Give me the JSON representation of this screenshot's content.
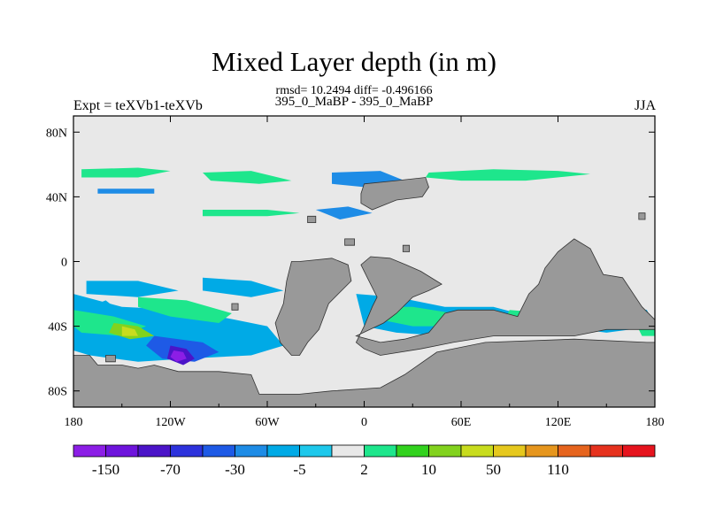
{
  "header": {
    "title": "Mixed Layer depth (in m)",
    "rmsd_line": "rmsd= 10.2494 diff= -0.496166",
    "subtitle": "395_0_MaBP - 395_0_MaBP",
    "experiment": "Expt = teXVb1-teXVb",
    "season": "JJA"
  },
  "chart_data": {
    "type": "heatmap",
    "title": "Mixed Layer depth (in m)",
    "subtitle": "395_0_MaBP - 395_0_MaBP",
    "xlim": [
      -180,
      180
    ],
    "ylim": [
      -90,
      90
    ],
    "x_ticks": [
      {
        "value": -180,
        "label": "180"
      },
      {
        "value": -120,
        "label": "120W"
      },
      {
        "value": -60,
        "label": "60W"
      },
      {
        "value": 0,
        "label": "0"
      },
      {
        "value": 60,
        "label": "60E"
      },
      {
        "value": 120,
        "label": "120E"
      },
      {
        "value": 180,
        "label": "180"
      }
    ],
    "y_ticks": [
      {
        "value": 80,
        "label": "80N"
      },
      {
        "value": 40,
        "label": "40N"
      },
      {
        "value": 0,
        "label": "0"
      },
      {
        "value": -40,
        "label": "40S"
      },
      {
        "value": -80,
        "label": "80S"
      }
    ],
    "colorbar": {
      "colors": [
        "#8c1ee6",
        "#6e14dc",
        "#4b14c8",
        "#2d32dc",
        "#1e5ae6",
        "#1e8ce6",
        "#00aae6",
        "#1ec8eb",
        "#e8e8e8",
        "#1ee68c",
        "#32d21e",
        "#82d21e",
        "#c8dc1e",
        "#e6c81e",
        "#e6961e",
        "#e6641e",
        "#e6321e",
        "#e6141e"
      ],
      "labels": [
        {
          "text": "-150",
          "index": 1
        },
        {
          "text": "-70",
          "index": 3
        },
        {
          "text": "-30",
          "index": 5
        },
        {
          "text": "-5",
          "index": 7
        },
        {
          "text": "2",
          "index": 9
        },
        {
          "text": "10",
          "index": 11
        },
        {
          "text": "50",
          "index": 13
        },
        {
          "text": "110",
          "index": 15
        }
      ]
    },
    "background_color": "#e8e8e8",
    "land_color": "#999999",
    "land": [
      {
        "name": "antarctica",
        "points": [
          [
            -180,
            -90
          ],
          [
            -180,
            -58
          ],
          [
            -170,
            -58
          ],
          [
            -165,
            -64
          ],
          [
            -150,
            -64
          ],
          [
            -140,
            -66
          ],
          [
            -130,
            -64
          ],
          [
            -115,
            -68
          ],
          [
            -90,
            -68
          ],
          [
            -70,
            -70
          ],
          [
            -65,
            -82
          ],
          [
            -40,
            -82
          ],
          [
            -20,
            -80
          ],
          [
            10,
            -78
          ],
          [
            25,
            -70
          ],
          [
            45,
            -56
          ],
          [
            75,
            -50
          ],
          [
            130,
            -48
          ],
          [
            175,
            -50
          ],
          [
            180,
            -50
          ],
          [
            180,
            -90
          ]
        ]
      },
      {
        "name": "south-america",
        "points": [
          [
            -45,
            0
          ],
          [
            -40,
            0
          ],
          [
            -20,
            2
          ],
          [
            -10,
            -2
          ],
          [
            -8,
            -12
          ],
          [
            -22,
            -26
          ],
          [
            -28,
            -42
          ],
          [
            -35,
            -50
          ],
          [
            -40,
            -58
          ],
          [
            -45,
            -58
          ],
          [
            -52,
            -50
          ],
          [
            -55,
            -38
          ],
          [
            -50,
            -26
          ],
          [
            -48,
            -12
          ]
        ]
      },
      {
        "name": "africa",
        "points": [
          [
            5,
            -28
          ],
          [
            8,
            -22
          ],
          [
            2,
            -10
          ],
          [
            -2,
            -2
          ],
          [
            4,
            3
          ],
          [
            16,
            2
          ],
          [
            26,
            -2
          ],
          [
            35,
            -6
          ],
          [
            48,
            -14
          ],
          [
            40,
            -18
          ],
          [
            30,
            -22
          ],
          [
            20,
            -32
          ],
          [
            12,
            -38
          ],
          [
            -5,
            -46
          ],
          [
            10,
            -50
          ],
          [
            25,
            -48
          ],
          [
            40,
            -44
          ],
          [
            50,
            -32
          ],
          [
            58,
            -30
          ],
          [
            80,
            -30
          ],
          [
            95,
            -34
          ],
          [
            102,
            -20
          ],
          [
            108,
            -14
          ],
          [
            112,
            -4
          ],
          [
            120,
            6
          ],
          [
            130,
            14
          ],
          [
            140,
            8
          ],
          [
            148,
            -8
          ],
          [
            160,
            -10
          ],
          [
            172,
            -28
          ],
          [
            180,
            -36
          ],
          [
            180,
            -42
          ],
          [
            150,
            -42
          ],
          [
            130,
            -46
          ],
          [
            80,
            -46
          ],
          [
            55,
            -50
          ],
          [
            35,
            -54
          ],
          [
            10,
            -58
          ],
          [
            0,
            -54
          ],
          [
            -5,
            -50
          ],
          [
            0,
            -40
          ]
        ]
      },
      {
        "name": "north-island-1",
        "points": [
          [
            -2,
            42
          ],
          [
            0,
            48
          ],
          [
            20,
            50
          ],
          [
            38,
            52
          ],
          [
            40,
            46
          ],
          [
            36,
            40
          ],
          [
            20,
            38
          ],
          [
            5,
            32
          ],
          [
            -2,
            36
          ]
        ]
      },
      {
        "name": "north-island-2",
        "points": [
          [
            -35,
            28
          ],
          [
            -30,
            28
          ],
          [
            -30,
            24
          ],
          [
            -35,
            24
          ]
        ]
      },
      {
        "name": "north-island-3",
        "points": [
          [
            -12,
            14
          ],
          [
            -6,
            14
          ],
          [
            -6,
            10
          ],
          [
            -12,
            10
          ]
        ]
      },
      {
        "name": "north-island-4",
        "points": [
          [
            24,
            10
          ],
          [
            28,
            10
          ],
          [
            28,
            6
          ],
          [
            24,
            6
          ]
        ]
      },
      {
        "name": "north-island-5",
        "points": [
          [
            170,
            30
          ],
          [
            174,
            30
          ],
          [
            174,
            26
          ],
          [
            170,
            26
          ]
        ]
      },
      {
        "name": "small-island-a",
        "points": [
          [
            -82,
            -26
          ],
          [
            -78,
            -26
          ],
          [
            -78,
            -30
          ],
          [
            -82,
            -30
          ]
        ]
      },
      {
        "name": "small-island-b",
        "points": [
          [
            -160,
            -58
          ],
          [
            -154,
            -58
          ],
          [
            -154,
            -62
          ],
          [
            -160,
            -62
          ]
        ]
      }
    ],
    "field_patches": [
      {
        "color": "#1ee68c",
        "level": 10,
        "points": [
          [
            -175,
            57
          ],
          [
            -140,
            58
          ],
          [
            -120,
            56
          ],
          [
            -140,
            52
          ],
          [
            -175,
            52
          ]
        ]
      },
      {
        "color": "#1ee68c",
        "level": 10,
        "points": [
          [
            -100,
            55
          ],
          [
            -70,
            56
          ],
          [
            -45,
            50
          ],
          [
            -65,
            48
          ],
          [
            -95,
            50
          ]
        ]
      },
      {
        "color": "#1ee68c",
        "level": 10,
        "points": [
          [
            40,
            55
          ],
          [
            80,
            57
          ],
          [
            120,
            56
          ],
          [
            140,
            54
          ],
          [
            100,
            50
          ],
          [
            60,
            50
          ],
          [
            38,
            52
          ]
        ]
      },
      {
        "color": "#1ee68c",
        "level": 10,
        "points": [
          [
            -100,
            32
          ],
          [
            -60,
            32
          ],
          [
            -40,
            30
          ],
          [
            -60,
            28
          ],
          [
            -100,
            28
          ]
        ]
      },
      {
        "color": "#1e8ce6",
        "level": -5,
        "points": [
          [
            -165,
            45
          ],
          [
            -130,
            45
          ],
          [
            -130,
            42
          ],
          [
            -165,
            42
          ]
        ]
      },
      {
        "color": "#1e8ce6",
        "level": -5,
        "points": [
          [
            -20,
            55
          ],
          [
            10,
            56
          ],
          [
            25,
            50
          ],
          [
            0,
            46
          ],
          [
            -20,
            48
          ]
        ]
      },
      {
        "color": "#1e8ce6",
        "level": -5,
        "points": [
          [
            -30,
            32
          ],
          [
            -10,
            34
          ],
          [
            5,
            30
          ],
          [
            -15,
            26
          ]
        ]
      },
      {
        "color": "#00aae6",
        "level": -5,
        "points": [
          [
            -172,
            -12
          ],
          [
            -140,
            -12
          ],
          [
            -115,
            -18
          ],
          [
            -140,
            -22
          ],
          [
            -172,
            -20
          ]
        ]
      },
      {
        "color": "#00aae6",
        "level": -5,
        "points": [
          [
            -180,
            -20
          ],
          [
            -150,
            -28
          ],
          [
            -110,
            -30
          ],
          [
            -80,
            -36
          ],
          [
            -60,
            -40
          ],
          [
            -50,
            -52
          ],
          [
            -70,
            -58
          ],
          [
            -110,
            -60
          ],
          [
            -140,
            -62
          ],
          [
            -170,
            -58
          ],
          [
            -180,
            -55
          ]
        ]
      },
      {
        "color": "#00aae6",
        "level": -5,
        "points": [
          [
            -100,
            -10
          ],
          [
            -70,
            -12
          ],
          [
            -50,
            -18
          ],
          [
            -70,
            -22
          ],
          [
            -100,
            -18
          ]
        ]
      },
      {
        "color": "#00aae6",
        "level": -5,
        "points": [
          [
            -180,
            -32
          ],
          [
            -160,
            -24
          ],
          [
            -150,
            -32
          ],
          [
            -165,
            -38
          ],
          [
            -180,
            -42
          ]
        ]
      },
      {
        "color": "#1ee68c",
        "level": 10,
        "points": [
          [
            -140,
            -22
          ],
          [
            -110,
            -24
          ],
          [
            -82,
            -32
          ],
          [
            -90,
            -38
          ],
          [
            -120,
            -34
          ],
          [
            -140,
            -28
          ]
        ]
      },
      {
        "color": "#1ee68c",
        "level": 10,
        "points": [
          [
            -180,
            -30
          ],
          [
            -155,
            -34
          ],
          [
            -135,
            -40
          ],
          [
            -150,
            -46
          ],
          [
            -175,
            -44
          ],
          [
            -180,
            -40
          ]
        ]
      },
      {
        "color": "#82d21e",
        "level": 10,
        "points": [
          [
            -155,
            -38
          ],
          [
            -140,
            -40
          ],
          [
            -130,
            -46
          ],
          [
            -145,
            -48
          ],
          [
            -158,
            -44
          ]
        ]
      },
      {
        "color": "#c8dc1e",
        "level": 50,
        "points": [
          [
            -150,
            -40
          ],
          [
            -142,
            -42
          ],
          [
            -140,
            -46
          ],
          [
            -150,
            -46
          ]
        ]
      },
      {
        "color": "#1e5ae6",
        "level": -30,
        "points": [
          [
            -130,
            -46
          ],
          [
            -100,
            -50
          ],
          [
            -90,
            -56
          ],
          [
            -105,
            -62
          ],
          [
            -125,
            -60
          ],
          [
            -135,
            -52
          ]
        ]
      },
      {
        "color": "#4b14c8",
        "level": -70,
        "points": [
          [
            -120,
            -52
          ],
          [
            -110,
            -54
          ],
          [
            -105,
            -60
          ],
          [
            -112,
            -64
          ],
          [
            -122,
            -60
          ]
        ]
      },
      {
        "color": "#8c1ee6",
        "level": -150,
        "points": [
          [
            -118,
            -55
          ],
          [
            -112,
            -56
          ],
          [
            -110,
            -60
          ],
          [
            -116,
            -62
          ],
          [
            -120,
            -59
          ]
        ]
      },
      {
        "color": "#00aae6",
        "level": -5,
        "points": [
          [
            -5,
            -20
          ],
          [
            20,
            -22
          ],
          [
            50,
            -28
          ],
          [
            80,
            -28
          ],
          [
            95,
            -32
          ],
          [
            80,
            -46
          ],
          [
            50,
            -46
          ],
          [
            20,
            -44
          ],
          [
            0,
            -40
          ]
        ]
      },
      {
        "color": "#1ee68c",
        "level": 10,
        "points": [
          [
            5,
            -28
          ],
          [
            30,
            -28
          ],
          [
            55,
            -32
          ],
          [
            75,
            -34
          ],
          [
            60,
            -40
          ],
          [
            30,
            -40
          ],
          [
            10,
            -36
          ]
        ]
      },
      {
        "color": "#82d21e",
        "level": 10,
        "points": [
          [
            55,
            -36
          ],
          [
            70,
            -40
          ],
          [
            75,
            -46
          ],
          [
            62,
            -48
          ],
          [
            52,
            -42
          ]
        ]
      },
      {
        "color": "#1ee68c",
        "level": 10,
        "points": [
          [
            90,
            -30
          ],
          [
            115,
            -32
          ],
          [
            120,
            -36
          ],
          [
            100,
            -38
          ],
          [
            88,
            -34
          ]
        ]
      },
      {
        "color": "#00aae6",
        "level": -5,
        "points": [
          [
            100,
            -24
          ],
          [
            140,
            -22
          ],
          [
            175,
            -30
          ],
          [
            180,
            -40
          ],
          [
            150,
            -44
          ],
          [
            120,
            -40
          ],
          [
            100,
            -34
          ]
        ]
      },
      {
        "color": "#1ee68c",
        "level": 10,
        "points": [
          [
            170,
            -42
          ],
          [
            180,
            -40
          ],
          [
            180,
            -46
          ],
          [
            172,
            -46
          ]
        ]
      }
    ]
  }
}
